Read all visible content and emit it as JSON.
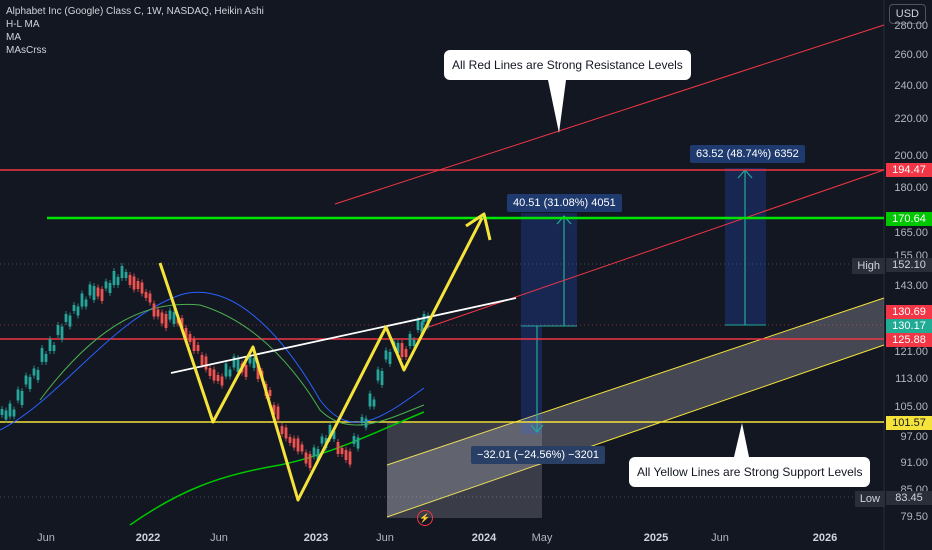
{
  "legend": {
    "title": "Alphabet Inc (Google) Class C, 1W, NASDAQ, Heikin Ashi",
    "indicators": [
      "H-L MA",
      "MA",
      "MAsCrss"
    ]
  },
  "currency": "USD",
  "callouts": {
    "resistance": "All Red Lines are Strong Resistance Levels",
    "support": "All Yellow Lines are Strong Support Levels"
  },
  "measures": {
    "up1": "40.51 (31.08%) 4051",
    "up2": "63.52 (48.74%) 6352",
    "down": "−32.01 (−24.56%) −3201"
  },
  "y_axis_ticks": [
    "280.00",
    "260.00",
    "240.00",
    "220.00",
    "200.00",
    "180.00",
    "165.00",
    "155.00",
    "143.00",
    "121.00",
    "113.00",
    "105.00",
    "97.00",
    "91.00",
    "85.00",
    "79.50"
  ],
  "price_tags": {
    "resistance_top": {
      "value": "194.47",
      "color": "#f23645"
    },
    "green_line": {
      "value": "170.64",
      "color": "#00c800"
    },
    "high": {
      "label": "High",
      "value": "152.10"
    },
    "current": {
      "value": "130.69",
      "color": "#f23645"
    },
    "prev": {
      "value": "130.17",
      "color": "#22ab94"
    },
    "resistance_low": {
      "value": "125.88",
      "color": "#f23645"
    },
    "support": {
      "value": "101.57",
      "color": "#f5e33b"
    },
    "low": {
      "label": "Low",
      "value": "83.45"
    }
  },
  "x_axis_ticks": [
    {
      "label": "Jun",
      "bold": false
    },
    {
      "label": "2022",
      "bold": true
    },
    {
      "label": "Jun",
      "bold": false
    },
    {
      "label": "2023",
      "bold": true
    },
    {
      "label": "Jun",
      "bold": false
    },
    {
      "label": "2024",
      "bold": true
    },
    {
      "label": "May",
      "bold": false
    },
    {
      "label": "2025",
      "bold": true
    },
    {
      "label": "Jun",
      "bold": false
    },
    {
      "label": "2026",
      "bold": true
    }
  ],
  "colors": {
    "background": "#131722",
    "resistance": "#f23645",
    "support": "#f5e33b",
    "green": "#00e600",
    "bull": "#26a69a",
    "bear": "#ef5350"
  }
}
